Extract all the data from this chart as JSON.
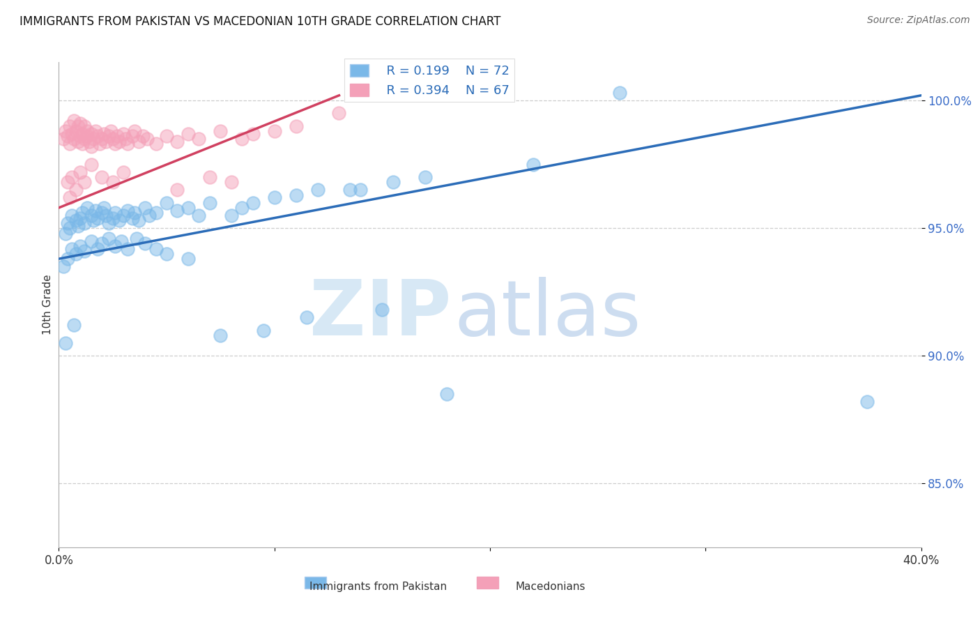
{
  "title": "IMMIGRANTS FROM PAKISTAN VS MACEDONIAN 10TH GRADE CORRELATION CHART",
  "source": "Source: ZipAtlas.com",
  "ylabel_label": "10th Grade",
  "xlim": [
    0.0,
    40.0
  ],
  "ylim": [
    82.5,
    101.5
  ],
  "yticks": [
    85.0,
    90.0,
    95.0,
    100.0
  ],
  "ytick_labels": [
    "85.0%",
    "90.0%",
    "95.0%",
    "100.0%"
  ],
  "xtick_positions": [
    0.0,
    10.0,
    20.0,
    30.0,
    40.0
  ],
  "xtick_labels": [
    "0.0%",
    "",
    "",
    "",
    "40.0%"
  ],
  "blue_color": "#7ab8e8",
  "pink_color": "#f4a0b8",
  "blue_line_color": "#2b6cb8",
  "pink_line_color": "#d04060",
  "legend_r_blue": "R = 0.199",
  "legend_n_blue": "N = 72",
  "legend_r_pink": "R = 0.394",
  "legend_n_pink": "N = 67",
  "blue_line_x": [
    0.0,
    40.0
  ],
  "blue_line_y": [
    93.8,
    100.2
  ],
  "pink_line_x": [
    0.0,
    13.0
  ],
  "pink_line_y": [
    95.8,
    100.2
  ],
  "blue_scatter_x": [
    0.3,
    0.5,
    0.4,
    0.6,
    0.8,
    0.9,
    1.0,
    1.1,
    1.2,
    1.3,
    1.5,
    1.6,
    1.7,
    1.8,
    2.0,
    2.1,
    2.2,
    2.3,
    2.5,
    2.6,
    2.8,
    3.0,
    3.2,
    3.4,
    3.5,
    3.7,
    4.0,
    4.2,
    4.5,
    5.0,
    5.5,
    6.0,
    6.5,
    7.0,
    8.0,
    8.5,
    9.0,
    10.0,
    11.0,
    12.0,
    13.5,
    14.0,
    15.5,
    17.0,
    22.0,
    26.0,
    0.2,
    0.4,
    0.6,
    0.8,
    1.0,
    1.2,
    1.5,
    1.8,
    2.0,
    2.3,
    2.6,
    2.9,
    3.2,
    3.6,
    4.0,
    4.5,
    5.0,
    6.0,
    7.5,
    9.5,
    11.5,
    15.0,
    18.0,
    37.5,
    0.3,
    0.7
  ],
  "blue_scatter_y": [
    94.8,
    95.0,
    95.2,
    95.5,
    95.3,
    95.1,
    95.4,
    95.6,
    95.2,
    95.8,
    95.5,
    95.3,
    95.7,
    95.4,
    95.6,
    95.8,
    95.5,
    95.2,
    95.4,
    95.6,
    95.3,
    95.5,
    95.7,
    95.4,
    95.6,
    95.3,
    95.8,
    95.5,
    95.6,
    96.0,
    95.7,
    95.8,
    95.5,
    96.0,
    95.5,
    95.8,
    96.0,
    96.2,
    96.3,
    96.5,
    96.5,
    96.5,
    96.8,
    97.0,
    97.5,
    100.3,
    93.5,
    93.8,
    94.2,
    94.0,
    94.3,
    94.1,
    94.5,
    94.2,
    94.4,
    94.6,
    94.3,
    94.5,
    94.2,
    94.6,
    94.4,
    94.2,
    94.0,
    93.8,
    90.8,
    91.0,
    91.5,
    91.8,
    88.5,
    88.2,
    90.5,
    91.2
  ],
  "pink_scatter_x": [
    0.2,
    0.3,
    0.4,
    0.5,
    0.5,
    0.6,
    0.7,
    0.7,
    0.8,
    0.9,
    0.9,
    1.0,
    1.0,
    1.1,
    1.1,
    1.2,
    1.2,
    1.3,
    1.3,
    1.4,
    1.5,
    1.5,
    1.6,
    1.7,
    1.8,
    1.9,
    2.0,
    2.1,
    2.2,
    2.3,
    2.4,
    2.5,
    2.6,
    2.7,
    2.8,
    3.0,
    3.1,
    3.2,
    3.4,
    3.5,
    3.7,
    3.9,
    4.1,
    4.5,
    5.0,
    5.5,
    6.0,
    6.5,
    7.5,
    8.5,
    9.0,
    10.0,
    11.0,
    13.0,
    0.4,
    0.6,
    0.8,
    1.0,
    1.2,
    1.5,
    2.0,
    2.5,
    3.0,
    5.5,
    7.0,
    8.0,
    0.5
  ],
  "pink_scatter_y": [
    98.5,
    98.8,
    98.6,
    99.0,
    98.3,
    98.7,
    98.5,
    99.2,
    98.8,
    99.0,
    98.4,
    98.6,
    99.1,
    98.7,
    98.3,
    98.5,
    99.0,
    98.8,
    98.6,
    98.4,
    98.7,
    98.2,
    98.5,
    98.8,
    98.6,
    98.3,
    98.5,
    98.7,
    98.4,
    98.6,
    98.8,
    98.5,
    98.3,
    98.6,
    98.4,
    98.7,
    98.5,
    98.3,
    98.6,
    98.8,
    98.4,
    98.6,
    98.5,
    98.3,
    98.6,
    98.4,
    98.7,
    98.5,
    98.8,
    98.5,
    98.7,
    98.8,
    99.0,
    99.5,
    96.8,
    97.0,
    96.5,
    97.2,
    96.8,
    97.5,
    97.0,
    96.8,
    97.2,
    96.5,
    97.0,
    96.8,
    96.2
  ]
}
